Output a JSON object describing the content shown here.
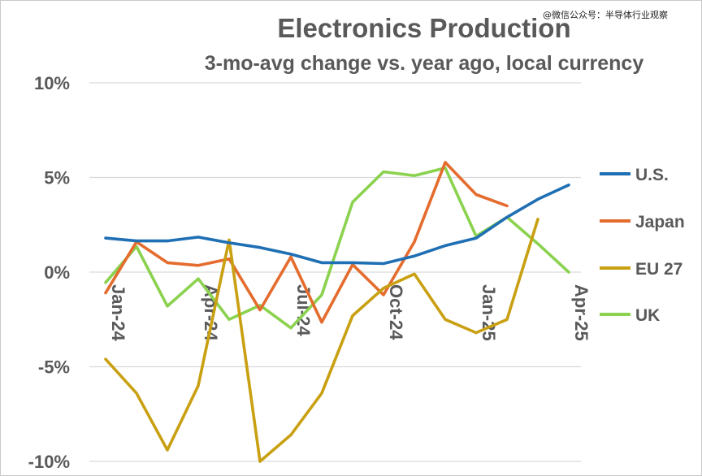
{
  "watermark": "@微信公众号：半导体行业观察",
  "chart_data": {
    "type": "line",
    "title": "Electronics Production",
    "subtitle": "3-mo-avg change vs. year ago, local currency",
    "x": [
      "Jan-24",
      "Feb-24",
      "Mar-24",
      "Apr-24",
      "May-24",
      "Jun-24",
      "Jul-24",
      "Aug-24",
      "Sep-24",
      "Oct-24",
      "Nov-24",
      "Dec-24",
      "Jan-25",
      "Feb-25",
      "Mar-25",
      "Apr-25"
    ],
    "x_tick_labels": [
      "Jan-24",
      "Apr-24",
      "Jul-24",
      "Oct-24",
      "Jan-25",
      "Apr-25"
    ],
    "y_tick_labels": [
      "10%",
      "5%",
      "0%",
      "-5%",
      "-10%"
    ],
    "y_ticks": [
      10,
      5,
      0,
      -5,
      -10
    ],
    "ylim": [
      -10,
      10
    ],
    "grid": true,
    "legend_position": "right",
    "series": [
      {
        "name": "U.S.",
        "color": "#1f6fb4",
        "values": [
          1.8,
          1.65,
          1.65,
          1.85,
          1.55,
          1.3,
          0.95,
          0.5,
          0.5,
          0.45,
          0.85,
          1.4,
          1.8,
          2.9,
          3.85,
          4.6
        ]
      },
      {
        "name": "Japan",
        "color": "#e46c2e",
        "values": [
          -1.1,
          1.6,
          0.5,
          0.35,
          0.7,
          -2.0,
          0.8,
          -2.65,
          0.4,
          -1.2,
          1.6,
          5.8,
          4.1,
          3.5,
          null,
          null
        ]
      },
      {
        "name": "EU 27",
        "color": "#c9a012",
        "values": [
          -4.6,
          -6.4,
          -9.4,
          -6.0,
          1.7,
          -10.0,
          -8.6,
          -6.4,
          -2.3,
          -0.85,
          -0.1,
          -2.5,
          -3.2,
          -2.5,
          2.8,
          null
        ]
      },
      {
        "name": "UK",
        "color": "#8bd24f",
        "values": [
          -0.55,
          1.35,
          -1.8,
          -0.35,
          -2.5,
          -1.75,
          -2.95,
          -1.2,
          3.7,
          5.3,
          5.1,
          5.5,
          1.9,
          2.9,
          1.5,
          0.0
        ]
      }
    ]
  }
}
